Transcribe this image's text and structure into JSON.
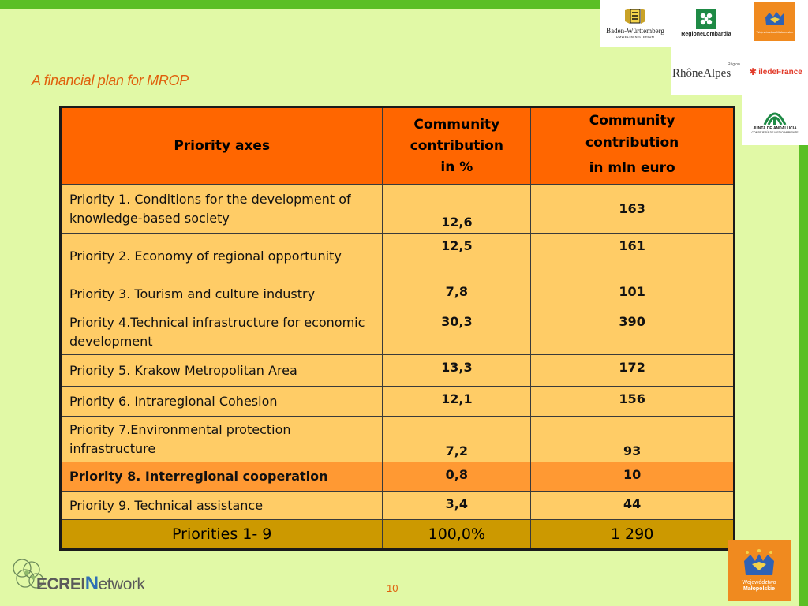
{
  "title": "A financial plan for MROP",
  "logos": {
    "bw_name": "Baden-Württemberg",
    "bw_sub": "UMWELTMINISTERIUM",
    "lombardia": "RegioneLombardia",
    "malopolska_small": "Województwo Małopolskie",
    "rhone": "RhôneAlpes",
    "rhone_sup": "Région",
    "iledefrance": "îledeFrance",
    "andalucia": "JUNTA DE ANDALUCIA",
    "andalucia_sub": "CONSEJERÍA DE MEDIO AMBIENTE",
    "malopolska_big_1": "Województwo",
    "malopolska_big_2": "Małopolskie"
  },
  "table": {
    "headers": {
      "col1": "Priority axes",
      "col2_line1": "Community",
      "col2_line2": "contribution",
      "col2_line3": "in %",
      "col3_line1": "Community",
      "col3_line2": "contribution",
      "col3_line3": "in mln euro"
    },
    "rows": [
      {
        "name": "Priority 1. Conditions for the development of knowledge-based society",
        "pct": "12,6",
        "eur": "163"
      },
      {
        "name": "Priority 2. Economy of regional opportunity",
        "pct": "12,5",
        "eur": "161"
      },
      {
        "name": "Priority 3. Tourism and culture industry",
        "pct": "7,8",
        "eur": "101"
      },
      {
        "name": "Priority 4.Technical infrastructure for economic development",
        "pct": "30,3",
        "eur": "390"
      },
      {
        "name": "Priority 5. Krakow Metropolitan Area",
        "pct": "13,3",
        "eur": "172"
      },
      {
        "name": "Priority 6. Intraregional Cohesion",
        "pct": "12,1",
        "eur": "156"
      },
      {
        "name": "Priority 7.Environmental protection infrastructure",
        "pct": "7,2",
        "eur": "93"
      },
      {
        "name": "Priority 8. Interregional cooperation",
        "pct": "0,8",
        "eur": "10"
      },
      {
        "name": "Priority 9. Technical assistance",
        "pct": "3,4",
        "eur": "44"
      }
    ],
    "total": {
      "name": "Priorities 1- 9",
      "pct": "100,0%",
      "eur": "1 290"
    }
  },
  "footer": {
    "network_prefix": "ECREI",
    "network_n": "N",
    "network_suffix": "etwork",
    "page_number": "10"
  },
  "colors": {
    "background": "#e1f9a6",
    "accent_green": "#5bbf25",
    "title_orange": "#e0600c",
    "header_orange": "#ff6600",
    "row_light": "#ffcc66",
    "row_highlight": "#ff9933",
    "total_row": "#cc9900"
  }
}
